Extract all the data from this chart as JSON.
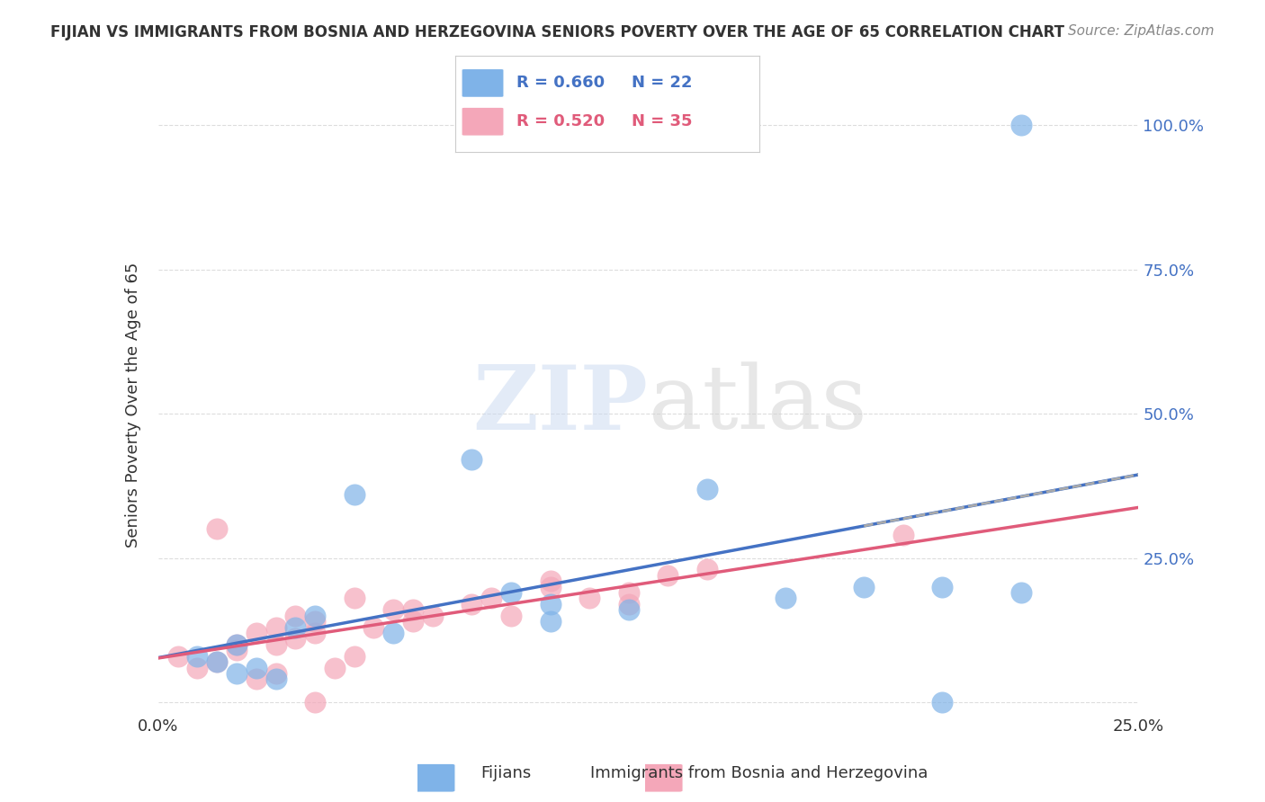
{
  "title": "FIJIAN VS IMMIGRANTS FROM BOSNIA AND HERZEGOVINA SENIORS POVERTY OVER THE AGE OF 65 CORRELATION CHART",
  "source": "Source: ZipAtlas.com",
  "xlabel": "",
  "ylabel": "Seniors Poverty Over the Age of 65",
  "xlim": [
    0,
    0.25
  ],
  "ylim": [
    -0.02,
    1.05
  ],
  "xticks": [
    0.0,
    0.05,
    0.1,
    0.15,
    0.2,
    0.25
  ],
  "xticklabels": [
    "0.0%",
    "",
    "",
    "",
    "",
    "25.0%"
  ],
  "ytick_positions": [
    0.0,
    0.25,
    0.5,
    0.75,
    1.0
  ],
  "yticklabels": [
    "",
    "25.0%",
    "50.0%",
    "75.0%",
    "100.0%"
  ],
  "watermark": "ZIPatlas",
  "fijians_x": [
    0.02,
    0.025,
    0.03,
    0.015,
    0.01,
    0.02,
    0.04,
    0.035,
    0.05,
    0.08,
    0.09,
    0.1,
    0.12,
    0.14,
    0.16,
    0.18,
    0.2,
    0.22,
    0.1,
    0.06,
    0.22,
    0.2
  ],
  "fijians_y": [
    0.05,
    0.06,
    0.04,
    0.07,
    0.08,
    0.1,
    0.15,
    0.13,
    0.36,
    0.42,
    0.19,
    0.17,
    0.16,
    0.37,
    0.18,
    0.2,
    0.2,
    1.0,
    0.14,
    0.12,
    0.19,
    0.0
  ],
  "bosnia_x": [
    0.005,
    0.01,
    0.015,
    0.02,
    0.025,
    0.03,
    0.03,
    0.035,
    0.04,
    0.04,
    0.045,
    0.05,
    0.055,
    0.06,
    0.065,
    0.07,
    0.08,
    0.085,
    0.09,
    0.1,
    0.11,
    0.12,
    0.13,
    0.14,
    0.015,
    0.02,
    0.025,
    0.03,
    0.035,
    0.05,
    0.065,
    0.1,
    0.19,
    0.04,
    0.12
  ],
  "bosnia_y": [
    0.08,
    0.06,
    0.07,
    0.09,
    0.04,
    0.05,
    0.1,
    0.11,
    0.12,
    0.14,
    0.06,
    0.08,
    0.13,
    0.16,
    0.14,
    0.15,
    0.17,
    0.18,
    0.15,
    0.2,
    0.18,
    0.19,
    0.22,
    0.23,
    0.3,
    0.1,
    0.12,
    0.13,
    0.15,
    0.18,
    0.16,
    0.21,
    0.29,
    0.0,
    0.17
  ],
  "fijian_color": "#7fb3e8",
  "fijian_line_color": "#4472c4",
  "bosnia_color": "#f4a7b9",
  "bosnia_line_color": "#e05b7a",
  "fijian_R": 0.66,
  "fijian_N": 22,
  "bosnia_R": 0.52,
  "bosnia_N": 35,
  "legend_R_color": "#4472c4",
  "legend_N_color": "#4472c4",
  "dashed_line_color": "#aaaaaa",
  "grid_color": "#dddddd",
  "background_color": "#ffffff"
}
